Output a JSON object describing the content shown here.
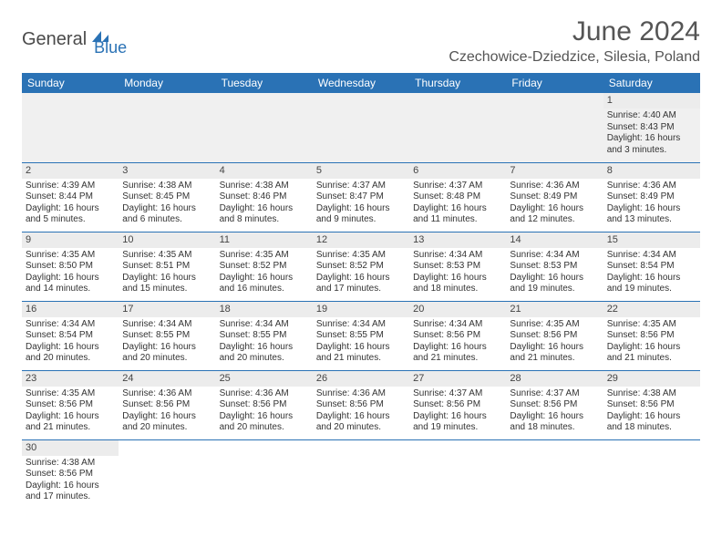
{
  "logo": {
    "general": "General",
    "blue": "Blue"
  },
  "header": {
    "month_title": "June 2024",
    "location": "Czechowice-Dziedzice, Silesia, Poland"
  },
  "colors": {
    "header_bg": "#2a72b5",
    "header_text": "#ffffff",
    "daynum_bg": "#ececec",
    "border": "#2a72b5"
  },
  "day_headers": [
    "Sunday",
    "Monday",
    "Tuesday",
    "Wednesday",
    "Thursday",
    "Friday",
    "Saturday"
  ],
  "weeks": [
    [
      {
        "n": "",
        "sr": "",
        "ss": "",
        "dl": ""
      },
      {
        "n": "",
        "sr": "",
        "ss": "",
        "dl": ""
      },
      {
        "n": "",
        "sr": "",
        "ss": "",
        "dl": ""
      },
      {
        "n": "",
        "sr": "",
        "ss": "",
        "dl": ""
      },
      {
        "n": "",
        "sr": "",
        "ss": "",
        "dl": ""
      },
      {
        "n": "",
        "sr": "",
        "ss": "",
        "dl": ""
      },
      {
        "n": "1",
        "sr": "Sunrise: 4:40 AM",
        "ss": "Sunset: 8:43 PM",
        "dl": "Daylight: 16 hours and 3 minutes."
      }
    ],
    [
      {
        "n": "2",
        "sr": "Sunrise: 4:39 AM",
        "ss": "Sunset: 8:44 PM",
        "dl": "Daylight: 16 hours and 5 minutes."
      },
      {
        "n": "3",
        "sr": "Sunrise: 4:38 AM",
        "ss": "Sunset: 8:45 PM",
        "dl": "Daylight: 16 hours and 6 minutes."
      },
      {
        "n": "4",
        "sr": "Sunrise: 4:38 AM",
        "ss": "Sunset: 8:46 PM",
        "dl": "Daylight: 16 hours and 8 minutes."
      },
      {
        "n": "5",
        "sr": "Sunrise: 4:37 AM",
        "ss": "Sunset: 8:47 PM",
        "dl": "Daylight: 16 hours and 9 minutes."
      },
      {
        "n": "6",
        "sr": "Sunrise: 4:37 AM",
        "ss": "Sunset: 8:48 PM",
        "dl": "Daylight: 16 hours and 11 minutes."
      },
      {
        "n": "7",
        "sr": "Sunrise: 4:36 AM",
        "ss": "Sunset: 8:49 PM",
        "dl": "Daylight: 16 hours and 12 minutes."
      },
      {
        "n": "8",
        "sr": "Sunrise: 4:36 AM",
        "ss": "Sunset: 8:49 PM",
        "dl": "Daylight: 16 hours and 13 minutes."
      }
    ],
    [
      {
        "n": "9",
        "sr": "Sunrise: 4:35 AM",
        "ss": "Sunset: 8:50 PM",
        "dl": "Daylight: 16 hours and 14 minutes."
      },
      {
        "n": "10",
        "sr": "Sunrise: 4:35 AM",
        "ss": "Sunset: 8:51 PM",
        "dl": "Daylight: 16 hours and 15 minutes."
      },
      {
        "n": "11",
        "sr": "Sunrise: 4:35 AM",
        "ss": "Sunset: 8:52 PM",
        "dl": "Daylight: 16 hours and 16 minutes."
      },
      {
        "n": "12",
        "sr": "Sunrise: 4:35 AM",
        "ss": "Sunset: 8:52 PM",
        "dl": "Daylight: 16 hours and 17 minutes."
      },
      {
        "n": "13",
        "sr": "Sunrise: 4:34 AM",
        "ss": "Sunset: 8:53 PM",
        "dl": "Daylight: 16 hours and 18 minutes."
      },
      {
        "n": "14",
        "sr": "Sunrise: 4:34 AM",
        "ss": "Sunset: 8:53 PM",
        "dl": "Daylight: 16 hours and 19 minutes."
      },
      {
        "n": "15",
        "sr": "Sunrise: 4:34 AM",
        "ss": "Sunset: 8:54 PM",
        "dl": "Daylight: 16 hours and 19 minutes."
      }
    ],
    [
      {
        "n": "16",
        "sr": "Sunrise: 4:34 AM",
        "ss": "Sunset: 8:54 PM",
        "dl": "Daylight: 16 hours and 20 minutes."
      },
      {
        "n": "17",
        "sr": "Sunrise: 4:34 AM",
        "ss": "Sunset: 8:55 PM",
        "dl": "Daylight: 16 hours and 20 minutes."
      },
      {
        "n": "18",
        "sr": "Sunrise: 4:34 AM",
        "ss": "Sunset: 8:55 PM",
        "dl": "Daylight: 16 hours and 20 minutes."
      },
      {
        "n": "19",
        "sr": "Sunrise: 4:34 AM",
        "ss": "Sunset: 8:55 PM",
        "dl": "Daylight: 16 hours and 21 minutes."
      },
      {
        "n": "20",
        "sr": "Sunrise: 4:34 AM",
        "ss": "Sunset: 8:56 PM",
        "dl": "Daylight: 16 hours and 21 minutes."
      },
      {
        "n": "21",
        "sr": "Sunrise: 4:35 AM",
        "ss": "Sunset: 8:56 PM",
        "dl": "Daylight: 16 hours and 21 minutes."
      },
      {
        "n": "22",
        "sr": "Sunrise: 4:35 AM",
        "ss": "Sunset: 8:56 PM",
        "dl": "Daylight: 16 hours and 21 minutes."
      }
    ],
    [
      {
        "n": "23",
        "sr": "Sunrise: 4:35 AM",
        "ss": "Sunset: 8:56 PM",
        "dl": "Daylight: 16 hours and 21 minutes."
      },
      {
        "n": "24",
        "sr": "Sunrise: 4:36 AM",
        "ss": "Sunset: 8:56 PM",
        "dl": "Daylight: 16 hours and 20 minutes."
      },
      {
        "n": "25",
        "sr": "Sunrise: 4:36 AM",
        "ss": "Sunset: 8:56 PM",
        "dl": "Daylight: 16 hours and 20 minutes."
      },
      {
        "n": "26",
        "sr": "Sunrise: 4:36 AM",
        "ss": "Sunset: 8:56 PM",
        "dl": "Daylight: 16 hours and 20 minutes."
      },
      {
        "n": "27",
        "sr": "Sunrise: 4:37 AM",
        "ss": "Sunset: 8:56 PM",
        "dl": "Daylight: 16 hours and 19 minutes."
      },
      {
        "n": "28",
        "sr": "Sunrise: 4:37 AM",
        "ss": "Sunset: 8:56 PM",
        "dl": "Daylight: 16 hours and 18 minutes."
      },
      {
        "n": "29",
        "sr": "Sunrise: 4:38 AM",
        "ss": "Sunset: 8:56 PM",
        "dl": "Daylight: 16 hours and 18 minutes."
      }
    ],
    [
      {
        "n": "30",
        "sr": "Sunrise: 4:38 AM",
        "ss": "Sunset: 8:56 PM",
        "dl": "Daylight: 16 hours and 17 minutes."
      },
      {
        "n": "",
        "sr": "",
        "ss": "",
        "dl": ""
      },
      {
        "n": "",
        "sr": "",
        "ss": "",
        "dl": ""
      },
      {
        "n": "",
        "sr": "",
        "ss": "",
        "dl": ""
      },
      {
        "n": "",
        "sr": "",
        "ss": "",
        "dl": ""
      },
      {
        "n": "",
        "sr": "",
        "ss": "",
        "dl": ""
      },
      {
        "n": "",
        "sr": "",
        "ss": "",
        "dl": ""
      }
    ]
  ]
}
